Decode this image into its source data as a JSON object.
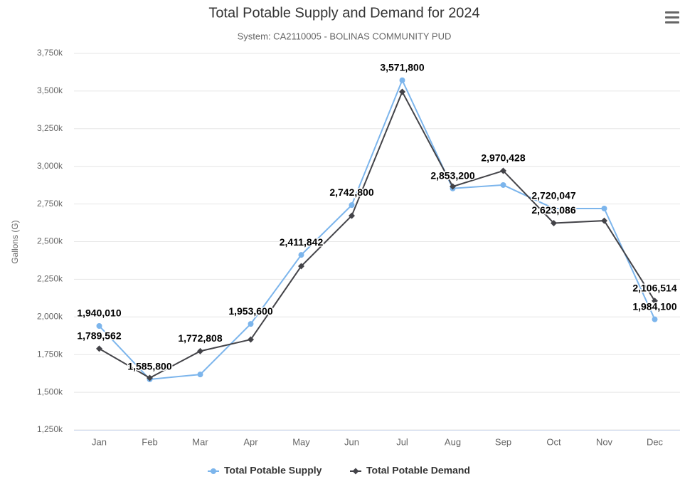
{
  "chart_data": {
    "type": "line",
    "title": "Total Potable Supply and Demand for 2024",
    "subtitle": "System: CA2110005 - BOLINAS COMMUNITY PUD",
    "y_label": "Gallons (G)",
    "categories": [
      "Jan",
      "Feb",
      "Mar",
      "Apr",
      "May",
      "Jun",
      "Jul",
      "Aug",
      "Sep",
      "Oct",
      "Nov",
      "Dec"
    ],
    "series": [
      {
        "name": "Total Potable Supply",
        "color": "#7cb5ec",
        "marker": "circle",
        "values": [
          1940010,
          1585800,
          1618000,
          1953600,
          2411842,
          2742800,
          3571800,
          2853200,
          2876000,
          2720047,
          2720000,
          1984100
        ],
        "value_labels": [
          "1,940,010",
          "1,585,800",
          null,
          "1,953,600",
          "2,411,842",
          "2,742,800",
          "3,571,800",
          "2,853,200",
          null,
          "2,720,047",
          null,
          "1,984,100"
        ]
      },
      {
        "name": "Total Potable Demand",
        "color": "#434348",
        "marker": "diamond",
        "values": [
          1789562,
          1595000,
          1772808,
          1850000,
          2337000,
          2672000,
          3495000,
          2866000,
          2970428,
          2623086,
          2639000,
          2106514
        ],
        "value_labels": [
          "1,789,562",
          null,
          "1,772,808",
          null,
          null,
          null,
          null,
          null,
          "2,970,428",
          "2,623,086",
          null,
          "2,106,514"
        ]
      }
    ],
    "ylim": [
      1250000,
      3750000
    ],
    "yticks": [
      {
        "value": 1250000,
        "label": "1,250k"
      },
      {
        "value": 1500000,
        "label": "1,500k"
      },
      {
        "value": 1750000,
        "label": "1,750k"
      },
      {
        "value": 2000000,
        "label": "2,000k"
      },
      {
        "value": 2250000,
        "label": "2,250k"
      },
      {
        "value": 2500000,
        "label": "2,500k"
      },
      {
        "value": 2750000,
        "label": "2,750k"
      },
      {
        "value": 3000000,
        "label": "3,000k"
      },
      {
        "value": 3250000,
        "label": "3,250k"
      },
      {
        "value": 3500000,
        "label": "3,500k"
      },
      {
        "value": 3750000,
        "label": "3,750k"
      }
    ],
    "grid": true,
    "legend": "bottom"
  }
}
